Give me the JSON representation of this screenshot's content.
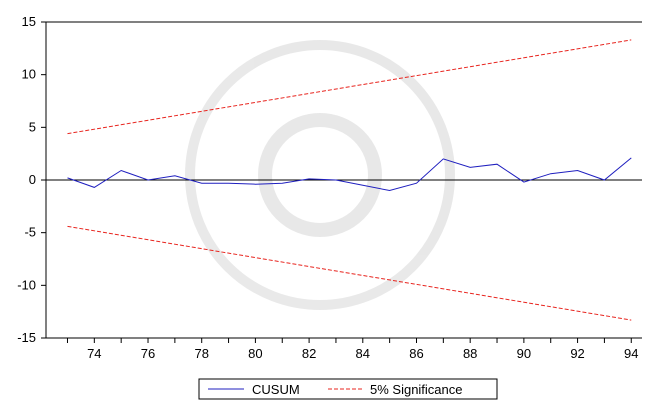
{
  "chart_data": {
    "type": "line",
    "x": [
      73,
      74,
      75,
      76,
      77,
      78,
      79,
      80,
      81,
      82,
      83,
      84,
      85,
      86,
      87,
      88,
      89,
      90,
      91,
      92,
      93,
      94
    ],
    "series": [
      {
        "name": "CUSUM",
        "color": "#1f1fbf",
        "style": "solid",
        "values": [
          0.2,
          -0.7,
          0.9,
          0.0,
          0.4,
          -0.3,
          -0.3,
          -0.4,
          -0.3,
          0.1,
          0.0,
          -0.5,
          -1.0,
          -0.3,
          2.0,
          1.2,
          1.5,
          -0.2,
          0.6,
          0.9,
          0.0,
          2.1
        ]
      },
      {
        "name": "5% Significance",
        "color": "#e8251f",
        "style": "dashed",
        "upper": [
          4.4,
          13.3
        ],
        "lower": [
          -4.4,
          -13.3
        ],
        "x_range": [
          73,
          94
        ]
      }
    ],
    "xlim": [
      72.2,
      94.4
    ],
    "ylim": [
      -15,
      15
    ],
    "x_ticks": [
      74,
      76,
      78,
      80,
      82,
      84,
      86,
      88,
      90,
      92,
      94
    ],
    "x_tick_labels": [
      "74",
      "76",
      "78",
      "80",
      "82",
      "84",
      "86",
      "88",
      "90",
      "92",
      "94"
    ],
    "y_ticks": [
      15,
      10,
      5,
      0,
      -5,
      -10,
      -15
    ],
    "y_tick_labels": [
      "15",
      "10",
      "5",
      "0",
      "-5",
      "-10",
      "-15"
    ],
    "grid": false,
    "zero_line": true,
    "legend": {
      "placement": "bottom-center",
      "entries": [
        "CUSUM",
        "5% Significance"
      ]
    },
    "title": "",
    "xlabel": "",
    "ylabel": ""
  }
}
